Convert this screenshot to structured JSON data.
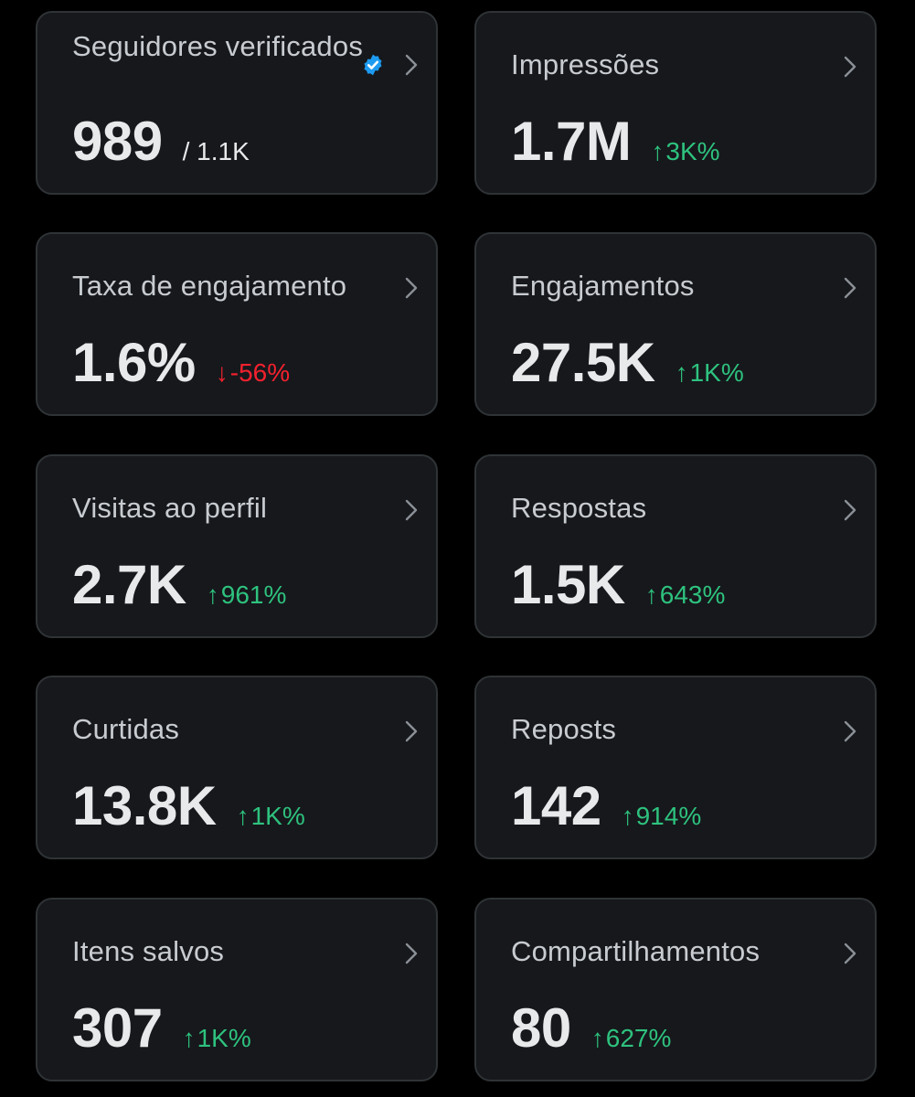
{
  "colors": {
    "background": "#000000",
    "card_background": "#16181c",
    "card_border": "#2f3336",
    "label": "#c8ccd0",
    "value": "#e7e9ea",
    "positive": "#2ec27e",
    "negative": "#f4212e",
    "verified_badge": "#1d9bf0"
  },
  "cards": [
    {
      "label": "Seguidores verificados",
      "value": "989",
      "sub": "/ 1.1K",
      "badge_icon": "verified-badge-icon"
    },
    {
      "label": "Impressões",
      "value": "1.7M",
      "delta": {
        "direction": "up",
        "arrow": "↑",
        "text": "3K%"
      }
    },
    {
      "label": "Taxa de engajamento",
      "value": "1.6%",
      "delta": {
        "direction": "down",
        "arrow": "↓",
        "text": "-56%"
      }
    },
    {
      "label": "Engajamentos",
      "value": "27.5K",
      "delta": {
        "direction": "up",
        "arrow": "↑",
        "text": "1K%"
      }
    },
    {
      "label": "Visitas ao perfil",
      "value": "2.7K",
      "delta": {
        "direction": "up",
        "arrow": "↑",
        "text": "961%"
      }
    },
    {
      "label": "Respostas",
      "value": "1.5K",
      "delta": {
        "direction": "up",
        "arrow": "↑",
        "text": "643%"
      }
    },
    {
      "label": "Curtidas",
      "value": "13.8K",
      "delta": {
        "direction": "up",
        "arrow": "↑",
        "text": "1K%"
      }
    },
    {
      "label": "Reposts",
      "value": "142",
      "delta": {
        "direction": "up",
        "arrow": "↑",
        "text": "914%"
      }
    },
    {
      "label": "Itens salvos",
      "value": "307",
      "delta": {
        "direction": "up",
        "arrow": "↑",
        "text": "1K%"
      }
    },
    {
      "label": "Compartilhamentos",
      "value": "80",
      "delta": {
        "direction": "up",
        "arrow": "↑",
        "text": "627%"
      }
    }
  ]
}
